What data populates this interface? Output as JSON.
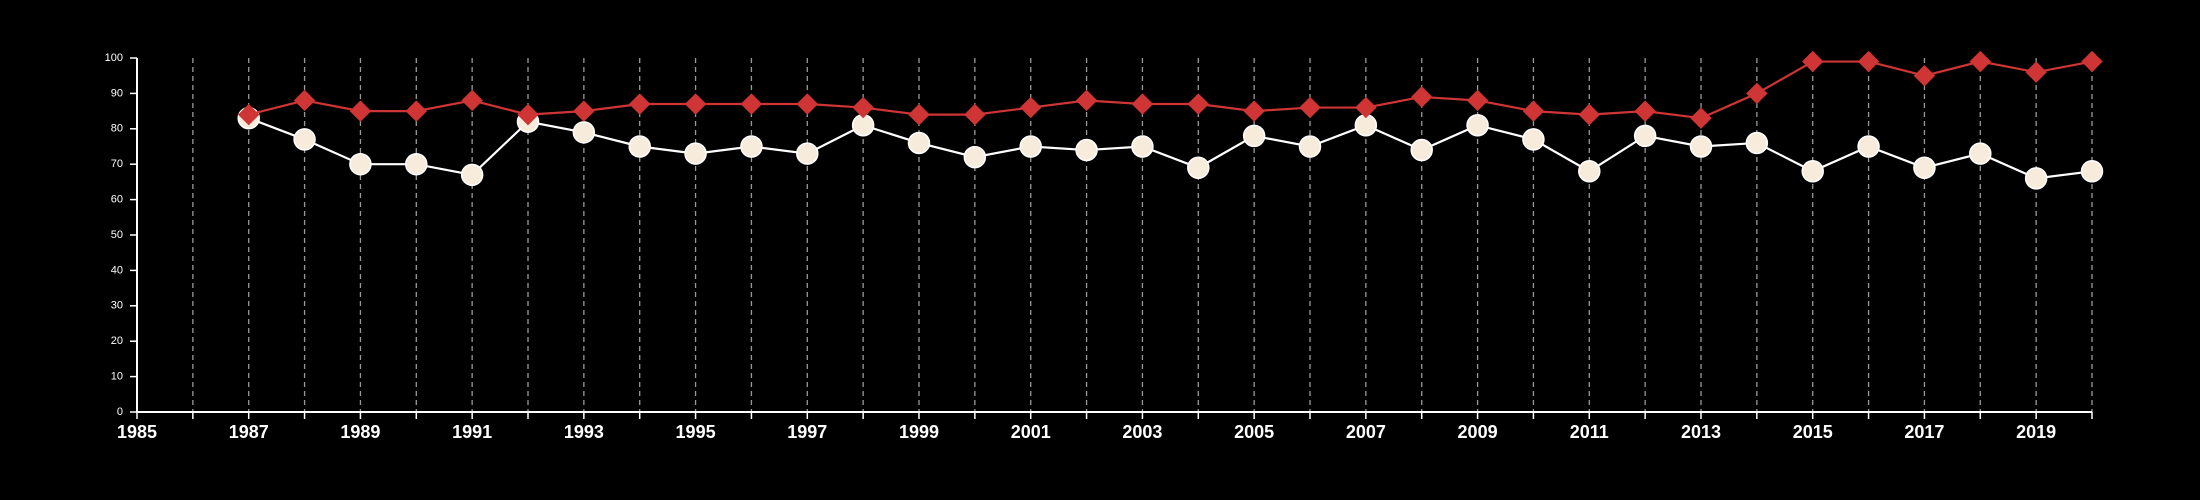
{
  "chart_data": {
    "type": "line",
    "title": "",
    "xlabel": "",
    "ylabel": "",
    "xlim": [
      1985,
      2020
    ],
    "ylim": [
      0,
      100
    ],
    "x_ticks": [
      1985,
      1987,
      1989,
      1991,
      1993,
      1995,
      1997,
      1999,
      2001,
      2003,
      2005,
      2007,
      2009,
      2011,
      2013,
      2015,
      2017,
      2019
    ],
    "y_ticks": [
      0,
      10,
      20,
      30,
      40,
      50,
      60,
      70,
      80,
      90,
      100
    ],
    "vertical_grid": true,
    "horizontal_grid": false,
    "legend": "none",
    "x": [
      1987,
      1988,
      1989,
      1990,
      1991,
      1992,
      1993,
      1994,
      1995,
      1996,
      1997,
      1998,
      1999,
      2000,
      2001,
      2002,
      2003,
      2004,
      2005,
      2006,
      2007,
      2008,
      2009,
      2010,
      2011,
      2012,
      2013,
      2014,
      2015,
      2016,
      2017,
      2018,
      2019,
      2020
    ],
    "series": [
      {
        "marker": "diamond",
        "color": "#d03535",
        "values": [
          84,
          88,
          85,
          85,
          88,
          84,
          85,
          87,
          87,
          87,
          87,
          86,
          84,
          84,
          86,
          88,
          87,
          87,
          85,
          86,
          86,
          89,
          88,
          85,
          84,
          85,
          83,
          90,
          99,
          99,
          95,
          99,
          96,
          99
        ]
      },
      {
        "marker": "circle",
        "color": "#ffffff",
        "fill": "#f7ebdc",
        "values": [
          83,
          77,
          70,
          70,
          67,
          82,
          79,
          75,
          73,
          75,
          73,
          81,
          76,
          72,
          75,
          74,
          75,
          69,
          78,
          75,
          81,
          74,
          81,
          77,
          68,
          78,
          75,
          76,
          68,
          75,
          69,
          73,
          66,
          68
        ]
      }
    ]
  }
}
